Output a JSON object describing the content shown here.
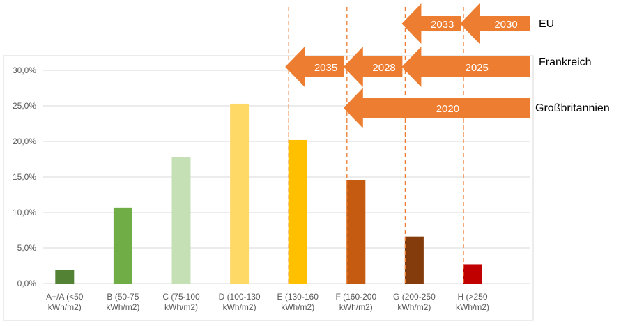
{
  "chart_data": {
    "type": "bar",
    "categories": [
      [
        "A+/A  (<50",
        "kWh/m2)"
      ],
      [
        "B (50-75",
        "kWh/m2)"
      ],
      [
        "C (75-100",
        "kWh/m2)"
      ],
      [
        "D (100-130",
        "kWh/m2)"
      ],
      [
        "E (130-160",
        "kWh/m2)"
      ],
      [
        "F (160-200",
        "kWh/m2)"
      ],
      [
        "G (200-250",
        "kWh/m2)"
      ],
      [
        "H (>250",
        "kWh/m2)"
      ]
    ],
    "values": [
      1.9,
      10.7,
      17.8,
      25.3,
      20.2,
      14.6,
      6.6,
      2.7
    ],
    "colors": [
      "#548235",
      "#70ad47",
      "#c5e0b4",
      "#ffd966",
      "#ffc000",
      "#c55a11",
      "#843c0c",
      "#c00000"
    ],
    "ylim": [
      0,
      30
    ],
    "yticks": [
      "0,0%",
      "5,0%",
      "10,0%",
      "15,0%",
      "20,0%",
      "25,0%",
      "30,0%"
    ],
    "grid": true,
    "annotations": {
      "color": "#ed7d31",
      "dashed_lines_after_categories": [
        "E",
        "F",
        "G",
        "H"
      ],
      "rows": [
        {
          "country": "EU",
          "arrows": [
            {
              "label": "2033",
              "from": "H",
              "to": "G"
            },
            {
              "label": "2030",
              "from": "end",
              "to": "H"
            }
          ]
        },
        {
          "country": "Frankreich",
          "arrows": [
            {
              "label": "2035",
              "from": "F",
              "to": "E"
            },
            {
              "label": "2028",
              "from": "G",
              "to": "F"
            },
            {
              "label": "2025",
              "from": "end",
              "to": "G"
            }
          ]
        },
        {
          "country": "Großbritannien",
          "arrows": [
            {
              "label": "2020",
              "from": "end",
              "to": "F"
            }
          ]
        }
      ]
    }
  }
}
